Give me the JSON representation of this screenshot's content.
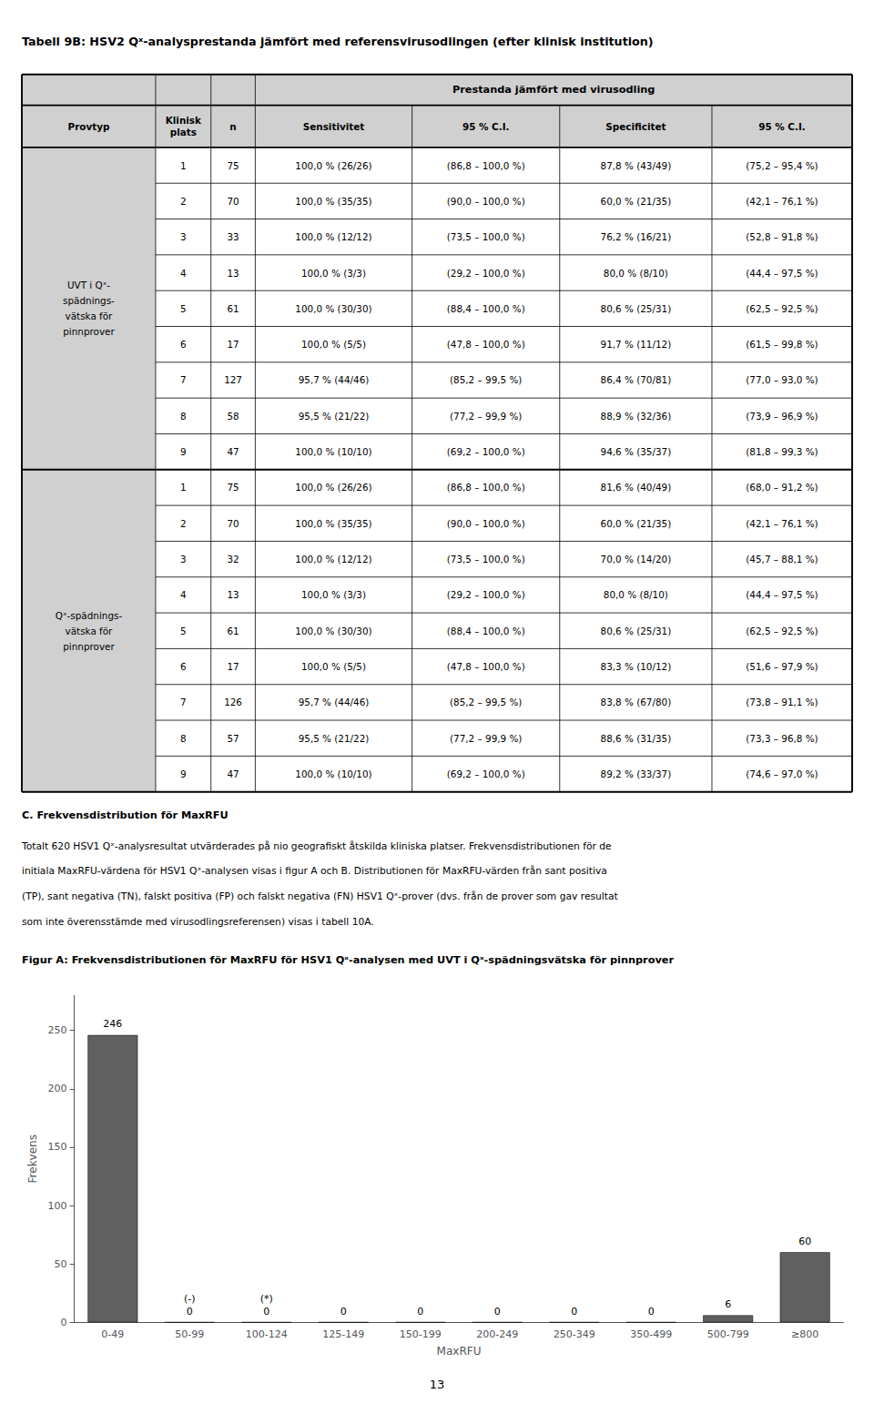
{
  "title": "Tabell 9B: HSV2 Qˣ-analysprestanda jämfört med referensvirusodlingen (efter klinisk institution)",
  "table": {
    "color": "#d0d0d0",
    "header": "Prestanda jämfört med virusodling",
    "columns": [
      "Provtyp",
      "Klinisk\nplats",
      "n",
      "Sensitivitet",
      "95 % C.I.",
      "Specificitet",
      "95 % C.I."
    ],
    "sections": [
      {
        "label": "UVT i Qˣ-\nspädnings-\nvätska för\npinnprover",
        "rows": [
          [
            1,
            75,
            "100,0 % (26/26)",
            "(86,8 – 100,0 %)",
            "87,8 % (43/49)",
            "(75,2 – 95,4 %)"
          ],
          [
            2,
            70,
            "100,0 % (35/35)",
            "(90,0 – 100,0 %)",
            "60,0 % (21/35)",
            "(42,1 – 76,1 %)"
          ],
          [
            3,
            33,
            "100,0 % (12/12)",
            "(73,5 – 100,0 %)",
            "76,2 % (16/21)",
            "(52,8 – 91,8 %)"
          ],
          [
            4,
            13,
            "100,0 % (3/3)",
            "(29,2 – 100,0 %)",
            "80,0 % (8/10)",
            "(44,4 – 97,5 %)"
          ],
          [
            5,
            61,
            "100,0 % (30/30)",
            "(88,4 – 100,0 %)",
            "80,6 % (25/31)",
            "(62,5 – 92,5 %)"
          ],
          [
            6,
            17,
            "100,0 % (5/5)",
            "(47,8 – 100,0 %)",
            "91,7 % (11/12)",
            "(61,5 – 99,8 %)"
          ],
          [
            7,
            127,
            "95,7 % (44/46)",
            "(85,2 – 99,5 %)",
            "86,4 % (70/81)",
            "(77,0 – 93,0 %)"
          ],
          [
            8,
            58,
            "95,5 % (21/22)",
            "(77,2 – 99,9 %)",
            "88,9 % (32/36)",
            "(73,9 – 96,9 %)"
          ],
          [
            9,
            47,
            "100,0 % (10/10)",
            "(69,2 – 100,0 %)",
            "94,6 % (35/37)",
            "(81,8 – 99,3 %)"
          ]
        ]
      },
      {
        "label": "Qˣ-spädnings-\nvätska för\npinnprover",
        "rows": [
          [
            1,
            75,
            "100,0 % (26/26)",
            "(86,8 – 100,0 %)",
            "81,6 % (40/49)",
            "(68,0 – 91,2 %)"
          ],
          [
            2,
            70,
            "100,0 % (35/35)",
            "(90,0 – 100,0 %)",
            "60,0 % (21/35)",
            "(42,1 – 76,1 %)"
          ],
          [
            3,
            32,
            "100,0 % (12/12)",
            "(73,5 – 100,0 %)",
            "70,0 % (14/20)",
            "(45,7 – 88,1 %)"
          ],
          [
            4,
            13,
            "100,0 % (3/3)",
            "(29,2 – 100,0 %)",
            "80,0 % (8/10)",
            "(44,4 – 97,5 %)"
          ],
          [
            5,
            61,
            "100,0 % (30/30)",
            "(88,4 – 100,0 %)",
            "80,6 % (25/31)",
            "(62,5 – 92,5 %)"
          ],
          [
            6,
            17,
            "100,0 % (5/5)",
            "(47,8 – 100,0 %)",
            "83,3 % (10/12)",
            "(51,6 – 97,9 %)"
          ],
          [
            7,
            126,
            "95,7 % (44/46)",
            "(85,2 – 99,5 %)",
            "83,8 % (67/80)",
            "(73,8 – 91,1 %)"
          ],
          [
            8,
            57,
            "95,5 % (21/22)",
            "(77,2 – 99,9 %)",
            "88,6 % (31/35)",
            "(73,3 – 96,8 %)"
          ],
          [
            9,
            47,
            "100,0 % (10/10)",
            "(69,2 – 100,0 %)",
            "89,2 % (33/37)",
            "(74,6 – 97,0 %)"
          ]
        ]
      }
    ]
  },
  "section": {
    "title": "C. Frekvensdistribution för MaxRFU",
    "lines": [
      "Totalt 620 HSV1 Qˣ-analysresultat utvärderades på nio geografiskt åtskilda kliniska platser. Frekvensdistributionen för de",
      "initiala MaxRFU-värdena för HSV1 Qˣ-analysen visas i figur A och B. Distributionen för MaxRFU-värden från sant positiva",
      "(TP), sant negativa (TN), falskt positiva (FP) och falskt negativa (FN) HSV1 Qˣ-prover (dvs. från de prover som gav resultat",
      "som inte överensstämde med virusodlingsreferensen) visas i tabell 10A."
    ]
  },
  "page_number": "13",
  "chart_data": {
    "type": "bar",
    "title": "Figur A: Frekvensdistributionen för MaxRFU för HSV1 Qˣ-analysen med UVT i Qˣ-spädningsvätska för pinnprover",
    "categories": [
      "0-49",
      "50-99",
      "100-124",
      "125-149",
      "150-199",
      "200-249",
      "250-349",
      "350-499",
      "500-799",
      "≥800"
    ],
    "values": [
      246,
      0,
      0,
      0,
      0,
      0,
      0,
      0,
      6,
      60
    ],
    "color": "#606060",
    "xlabel": "MaxRFU",
    "ylabel": "Frekvens",
    "ylim": [
      0,
      280
    ],
    "yticks": [
      0,
      50,
      100,
      150,
      200,
      250
    ],
    "grid": false,
    "data_labels": true,
    "annotations": [
      {
        "category": "50-99",
        "text": "(-)"
      },
      {
        "category": "100-124",
        "text": "(*)"
      }
    ]
  }
}
